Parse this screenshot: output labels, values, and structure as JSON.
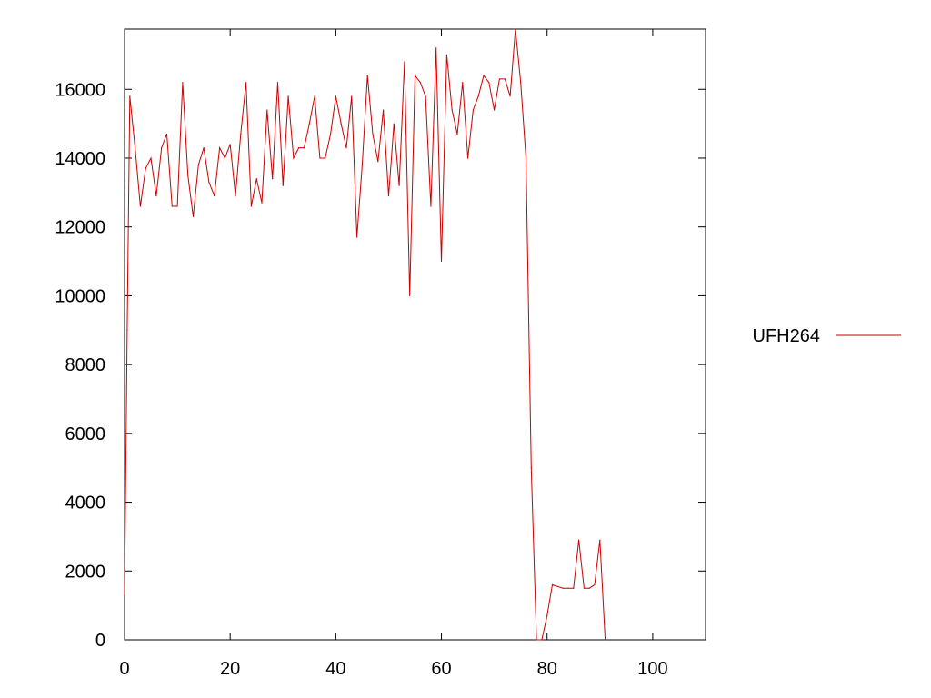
{
  "chart_data": {
    "type": "line",
    "title": "",
    "xlabel": "",
    "ylabel": "",
    "xlim": [
      0,
      110
    ],
    "ylim": [
      0,
      17750
    ],
    "x_ticks": [
      0,
      20,
      40,
      60,
      80,
      100
    ],
    "y_ticks": [
      0,
      2000,
      4000,
      6000,
      8000,
      10000,
      12000,
      14000,
      16000
    ],
    "grid": false,
    "legend_position": "right",
    "series": [
      {
        "name": "UFH264",
        "color": "#cc0000",
        "x": [
          0,
          0.5,
          1,
          2,
          3,
          4,
          5,
          6,
          7,
          8,
          9,
          10,
          11,
          12,
          13,
          14,
          15,
          16,
          17,
          18,
          19,
          20,
          21,
          22,
          23,
          24,
          25,
          26,
          27,
          28,
          29,
          30,
          31,
          32,
          33,
          34,
          35,
          36,
          37,
          38,
          39,
          40,
          41,
          42,
          43,
          44,
          45,
          46,
          47,
          48,
          49,
          50,
          51,
          52,
          53,
          54,
          55,
          56,
          57,
          58,
          59,
          60,
          61,
          62,
          63,
          64,
          65,
          66,
          67,
          68,
          69,
          70,
          71,
          72,
          73,
          74,
          75,
          76,
          77,
          78,
          79,
          80,
          81,
          82,
          83,
          84,
          85,
          86,
          87,
          88,
          89,
          90,
          91
        ],
        "y": [
          1300,
          9000,
          15800,
          14300,
          12600,
          13700,
          14000,
          12900,
          14300,
          14700,
          12600,
          12600,
          16200,
          13500,
          12300,
          13800,
          14300,
          13300,
          12900,
          14300,
          14000,
          14400,
          12900,
          14700,
          16200,
          12600,
          13400,
          12700,
          15400,
          13400,
          16200,
          13200,
          15800,
          14000,
          14300,
          14300,
          15000,
          15800,
          14000,
          14000,
          14700,
          15800,
          15000,
          14300,
          15800,
          11700,
          13800,
          16400,
          14700,
          13900,
          15400,
          12900,
          15000,
          13200,
          16800,
          10000,
          16400,
          16200,
          15800,
          12600,
          17200,
          11000,
          17000,
          15400,
          14700,
          16200,
          14000,
          15400,
          15800,
          16400,
          16200,
          15400,
          16300,
          16300,
          15800,
          17750,
          16200,
          14000,
          5000,
          0,
          0,
          700,
          1600,
          1550,
          1500,
          1500,
          1500,
          2900,
          1500,
          1500,
          1600,
          2900,
          0
        ]
      }
    ]
  }
}
